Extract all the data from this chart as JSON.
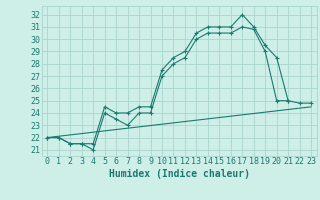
{
  "xlabel": "Humidex (Indice chaleur)",
  "background_color": "#ceeee8",
  "grid_color": "#aad4ce",
  "line_color": "#1a7a6e",
  "xlim": [
    -0.5,
    23.5
  ],
  "ylim": [
    20.5,
    32.7
  ],
  "xticks": [
    0,
    1,
    2,
    3,
    4,
    5,
    6,
    7,
    8,
    9,
    10,
    11,
    12,
    13,
    14,
    15,
    16,
    17,
    18,
    19,
    20,
    21,
    22,
    23
  ],
  "yticks": [
    21,
    22,
    23,
    24,
    25,
    26,
    27,
    28,
    29,
    30,
    31,
    32
  ],
  "line1_x": [
    0,
    1,
    2,
    3,
    4,
    5,
    6,
    7,
    8,
    9,
    10,
    11,
    12,
    13,
    14,
    15,
    16,
    17,
    18,
    19,
    20,
    21,
    22,
    23
  ],
  "line1_y": [
    22,
    22,
    21.5,
    21.5,
    21.5,
    24.5,
    24,
    24,
    24.5,
    24.5,
    27.5,
    28.5,
    29,
    30.5,
    31,
    31,
    31,
    32,
    31,
    29.5,
    28.5,
    25,
    24.8,
    24.8
  ],
  "line2_x": [
    0,
    1,
    2,
    3,
    4,
    5,
    6,
    7,
    8,
    9,
    10,
    11,
    12,
    13,
    14,
    15,
    16,
    17,
    18,
    19,
    20,
    21
  ],
  "line2_y": [
    22,
    22,
    21.5,
    21.5,
    21,
    24,
    23.5,
    23,
    24,
    24,
    27,
    28,
    28.5,
    30,
    30.5,
    30.5,
    30.5,
    31,
    30.8,
    29,
    25,
    25
  ],
  "line3_x": [
    0,
    23
  ],
  "line3_y": [
    22,
    24.5
  ],
  "tick_fontsize": 6,
  "xlabel_fontsize": 7
}
